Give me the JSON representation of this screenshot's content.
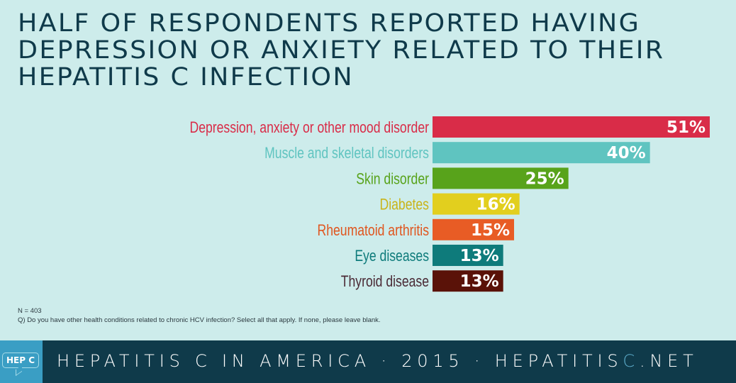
{
  "title_lines": [
    "HALF OF RESPONDENTS REPORTED HAVING",
    "DEPRESSION OR ANXIETY RELATED TO THEIR",
    "HEPATITIS C INFECTION"
  ],
  "chart_data": {
    "type": "bar",
    "orientation": "horizontal",
    "title": "Half of respondents reported having depression or anxiety related to their Hepatitis C infection",
    "xlabel": "",
    "ylabel": "",
    "categories": [
      "Depression, anxiety or other mood disorder",
      "Muscle and skeletal disorders",
      "Skin disorder",
      "Diabetes",
      "Rheumatoid arthritis",
      "Eye diseases",
      "Thyroid disease"
    ],
    "values": [
      51,
      40,
      25,
      16,
      15,
      13,
      13
    ],
    "value_labels": [
      "51%",
      "40%",
      "25%",
      "16%",
      "15%",
      "13%",
      "13%"
    ],
    "colors": [
      "#d92c48",
      "#5fc4c0",
      "#58a31b",
      "#e2cf1e",
      "#e85c25",
      "#0e7b7b",
      "#5a1208"
    ],
    "label_colors": [
      "#d92c48",
      "#5fc4c0",
      "#58a31b",
      "#c9b41a",
      "#e0561f",
      "#0e7b7b",
      "#4a2a35"
    ],
    "xlim": [
      0,
      51
    ],
    "grid": false,
    "legend": "none"
  },
  "notes": {
    "sample": "N = 403",
    "question": "Q) Do you have other health conditions related to chronic HCV infection? Select all that apply. If none, please leave blank."
  },
  "footer": {
    "logo_text": "HEP C",
    "text_main": "HEPATITIS C IN AMERICA · 2015 · HEPATITIS",
    "text_accent": "C",
    "text_end": ".NET"
  }
}
